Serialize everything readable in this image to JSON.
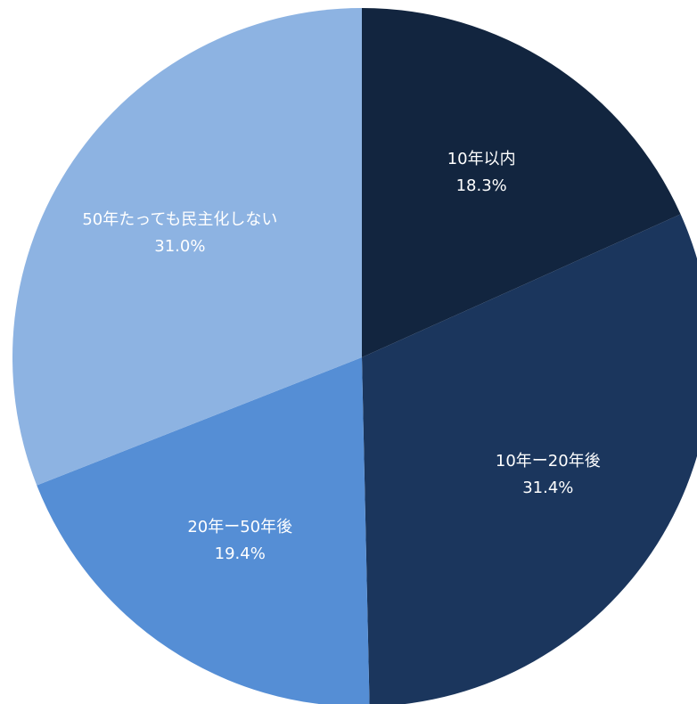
{
  "chart_data": {
    "type": "pie",
    "categories": [
      "10年以内",
      "10年ー20年後",
      "20年ー50年後",
      "50年たっても民主化しない"
    ],
    "values": [
      18.3,
      31.4,
      19.4,
      31.0
    ],
    "value_labels": [
      "18.3%",
      "31.4%",
      "19.4%",
      "31.0%"
    ],
    "colors": [
      "#12253f",
      "#1b365d",
      "#558ed5",
      "#8db3e2"
    ]
  }
}
